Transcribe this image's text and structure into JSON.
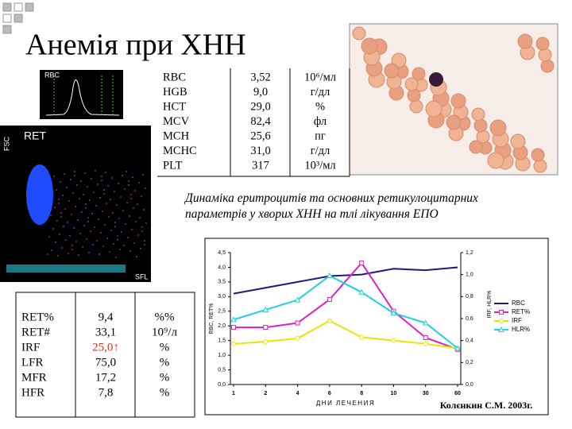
{
  "title": "Анемія при ХНН",
  "rbc_plot": {
    "label": "RBC"
  },
  "ret_plot": {
    "label": "RET",
    "y_label": "FSC",
    "x_label": "SFL"
  },
  "blood_table": {
    "rows": [
      [
        "RBC",
        "3,52",
        "10⁶/мл"
      ],
      [
        "HGB",
        "9,0",
        "г/дл"
      ],
      [
        "HCT",
        "29,0",
        "%"
      ],
      [
        "MCV",
        "82,4",
        "фл"
      ],
      [
        "MCH",
        "25,6",
        "пг"
      ],
      [
        "MCHC",
        "31,0",
        "г/дл"
      ],
      [
        "PLT",
        "317",
        "10³/мл"
      ]
    ]
  },
  "caption": [
    "Динаміка еритроцитів та основних ретикулоцитарних",
    "параметрів у хворих ХНН на тлі лікування ЕПО"
  ],
  "ret_table": {
    "rows": [
      [
        "RET%",
        "9,4",
        "%%"
      ],
      [
        "RET#",
        "33,1",
        "10⁹/л"
      ],
      [
        "IRF",
        {
          "text": "25,0↑",
          "color": "#d8321e"
        },
        "%"
      ],
      [
        "LFR",
        "75,0",
        "%"
      ],
      [
        "MFR",
        "17,2",
        "%"
      ],
      [
        "HFR",
        "7,8",
        "%"
      ]
    ]
  },
  "chart_data": {
    "type": "line",
    "categories": [
      "1",
      "2",
      "4",
      "6",
      "8",
      "10",
      "30",
      "60"
    ],
    "xlabel": "ДНИ ЛЕЧЕНИЯ",
    "ylabel": "RBC, RET%",
    "y2label": "IRF, HLR%",
    "ylim": [
      0,
      4.5
    ],
    "yticks": [
      {
        "value": 0,
        "label": "0,0"
      },
      {
        "value": 0.5,
        "label": "0,5"
      },
      {
        "value": 1,
        "label": "1,0"
      },
      {
        "value": 1.5,
        "label": "1,5"
      },
      {
        "value": 2,
        "label": "2,0"
      },
      {
        "value": 2.5,
        "label": "2,5"
      },
      {
        "value": 3,
        "label": "3,0"
      },
      {
        "value": 3.5,
        "label": "3,5"
      },
      {
        "value": 4,
        "label": "4,0"
      },
      {
        "value": 4.5,
        "label": "4,5"
      }
    ],
    "y2lim": [
      0,
      1.2
    ],
    "y2ticks": [
      {
        "value": 0,
        "label": "0,0"
      },
      {
        "value": 0.2,
        "label": "0,2"
      },
      {
        "value": 0.4,
        "label": "0,4"
      },
      {
        "value": 0.6,
        "label": "0,6"
      },
      {
        "value": 0.8,
        "label": "0,8"
      },
      {
        "value": 1,
        "label": "1,0"
      },
      {
        "value": 1.2,
        "label": "1,2"
      }
    ],
    "series": [
      {
        "name": "RBC",
        "color": "#1c1c7c",
        "values": [
          3.1,
          3.3,
          3.5,
          3.7,
          3.75,
          3.95,
          3.9,
          4.0
        ]
      },
      {
        "name": "RET%",
        "color": "#e020c0",
        "marker": "square",
        "values": [
          1.95,
          1.95,
          2.1,
          2.9,
          4.15,
          2.5,
          1.6,
          1.2
        ]
      },
      {
        "name": "IRF",
        "color": "#e6e600",
        "marker": "circle",
        "axis": "y2",
        "values": [
          0.37,
          0.39,
          0.42,
          0.58,
          0.43,
          0.4,
          0.37,
          0.33
        ]
      },
      {
        "name": "HLR%",
        "color": "#22d0e0",
        "marker": "triangle",
        "axis": "y2",
        "values": [
          0.59,
          0.68,
          0.77,
          0.99,
          0.84,
          0.65,
          0.56,
          0.33
        ]
      }
    ]
  },
  "author": "Колєнкин С.М. 2003г."
}
